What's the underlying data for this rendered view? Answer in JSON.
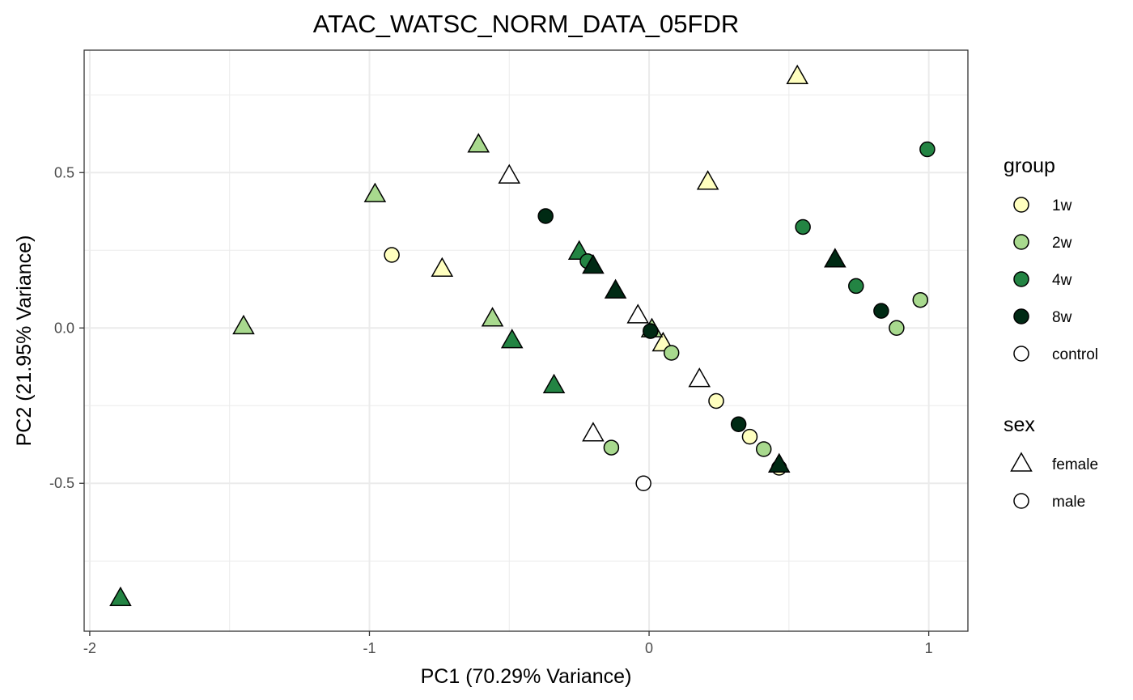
{
  "chart_data": {
    "type": "scatter",
    "title": "ATAC_WATSC_NORM_DATA_05FDR",
    "xlabel": "PC1 (70.29% Variance)",
    "ylabel": "PC2 (21.95% Variance)",
    "xlim": [
      -2.02,
      1.14
    ],
    "ylim": [
      -0.976,
      0.894
    ],
    "x_ticks": [
      -2,
      -1,
      0,
      1
    ],
    "x_tick_labels": [
      "-2",
      "-1",
      "0",
      "1"
    ],
    "y_ticks": [
      0.5,
      0.0,
      -0.5
    ],
    "y_tick_labels": [
      "0.5",
      "0.0",
      "-0.5"
    ],
    "grid": true,
    "legend_position": "right",
    "colors": {
      "1w": "#ffffbf",
      "2w": "#a8d98e",
      "4w": "#238443",
      "8w": "#002a14",
      "control": "#ffffff"
    },
    "legends": [
      {
        "title": "group",
        "items": [
          {
            "label": "1w",
            "group": "1w"
          },
          {
            "label": "2w",
            "group": "2w"
          },
          {
            "label": "4w",
            "group": "4w"
          },
          {
            "label": "8w",
            "group": "8w"
          },
          {
            "label": "control",
            "group": "control"
          }
        ]
      },
      {
        "title": "sex",
        "items": [
          {
            "label": "female",
            "shape": "triangle"
          },
          {
            "label": "male",
            "shape": "circle"
          }
        ]
      }
    ],
    "points": [
      {
        "x": 0.53,
        "y": 0.81,
        "group": "1w",
        "sex": "female"
      },
      {
        "x": 0.21,
        "y": 0.47,
        "group": "1w",
        "sex": "female"
      },
      {
        "x": -0.74,
        "y": 0.19,
        "group": "1w",
        "sex": "female"
      },
      {
        "x": 0.05,
        "y": -0.05,
        "group": "1w",
        "sex": "female"
      },
      {
        "x": -0.92,
        "y": 0.235,
        "group": "1w",
        "sex": "male"
      },
      {
        "x": 0.24,
        "y": -0.235,
        "group": "1w",
        "sex": "male"
      },
      {
        "x": 0.36,
        "y": -0.35,
        "group": "1w",
        "sex": "male"
      },
      {
        "x": 0.465,
        "y": -0.45,
        "group": "1w",
        "sex": "male"
      },
      {
        "x": -0.61,
        "y": 0.59,
        "group": "2w",
        "sex": "female"
      },
      {
        "x": -0.98,
        "y": 0.43,
        "group": "2w",
        "sex": "female"
      },
      {
        "x": -1.45,
        "y": 0.005,
        "group": "2w",
        "sex": "female"
      },
      {
        "x": -0.56,
        "y": 0.03,
        "group": "2w",
        "sex": "female"
      },
      {
        "x": 0.01,
        "y": -0.005,
        "group": "2w",
        "sex": "female"
      },
      {
        "x": 0.97,
        "y": 0.09,
        "group": "2w",
        "sex": "male"
      },
      {
        "x": 0.885,
        "y": 0.0,
        "group": "2w",
        "sex": "male"
      },
      {
        "x": 0.08,
        "y": -0.08,
        "group": "2w",
        "sex": "male"
      },
      {
        "x": 0.41,
        "y": -0.39,
        "group": "2w",
        "sex": "male"
      },
      {
        "x": -0.135,
        "y": -0.385,
        "group": "2w",
        "sex": "male"
      },
      {
        "x": -1.89,
        "y": -0.87,
        "group": "4w",
        "sex": "female"
      },
      {
        "x": -0.25,
        "y": 0.245,
        "group": "4w",
        "sex": "female"
      },
      {
        "x": -0.49,
        "y": -0.04,
        "group": "4w",
        "sex": "female"
      },
      {
        "x": -0.34,
        "y": -0.185,
        "group": "4w",
        "sex": "female"
      },
      {
        "x": 0.995,
        "y": 0.575,
        "group": "4w",
        "sex": "male"
      },
      {
        "x": 0.55,
        "y": 0.325,
        "group": "4w",
        "sex": "male"
      },
      {
        "x": 0.74,
        "y": 0.135,
        "group": "4w",
        "sex": "male"
      },
      {
        "x": -0.22,
        "y": 0.215,
        "group": "4w",
        "sex": "male"
      },
      {
        "x": 0.665,
        "y": 0.22,
        "group": "8w",
        "sex": "female"
      },
      {
        "x": -0.2,
        "y": 0.2,
        "group": "8w",
        "sex": "female"
      },
      {
        "x": -0.12,
        "y": 0.12,
        "group": "8w",
        "sex": "female"
      },
      {
        "x": 0.465,
        "y": -0.44,
        "group": "8w",
        "sex": "female"
      },
      {
        "x": -0.37,
        "y": 0.36,
        "group": "8w",
        "sex": "male"
      },
      {
        "x": 0.83,
        "y": 0.055,
        "group": "8w",
        "sex": "male"
      },
      {
        "x": 0.005,
        "y": -0.01,
        "group": "8w",
        "sex": "male"
      },
      {
        "x": 0.32,
        "y": -0.31,
        "group": "8w",
        "sex": "male"
      },
      {
        "x": -0.5,
        "y": 0.49,
        "group": "control",
        "sex": "female"
      },
      {
        "x": -0.04,
        "y": 0.04,
        "group": "control",
        "sex": "female"
      },
      {
        "x": 0.18,
        "y": -0.165,
        "group": "control",
        "sex": "female"
      },
      {
        "x": -0.2,
        "y": -0.34,
        "group": "control",
        "sex": "female"
      },
      {
        "x": -0.02,
        "y": -0.5,
        "group": "control",
        "sex": "male"
      }
    ]
  }
}
